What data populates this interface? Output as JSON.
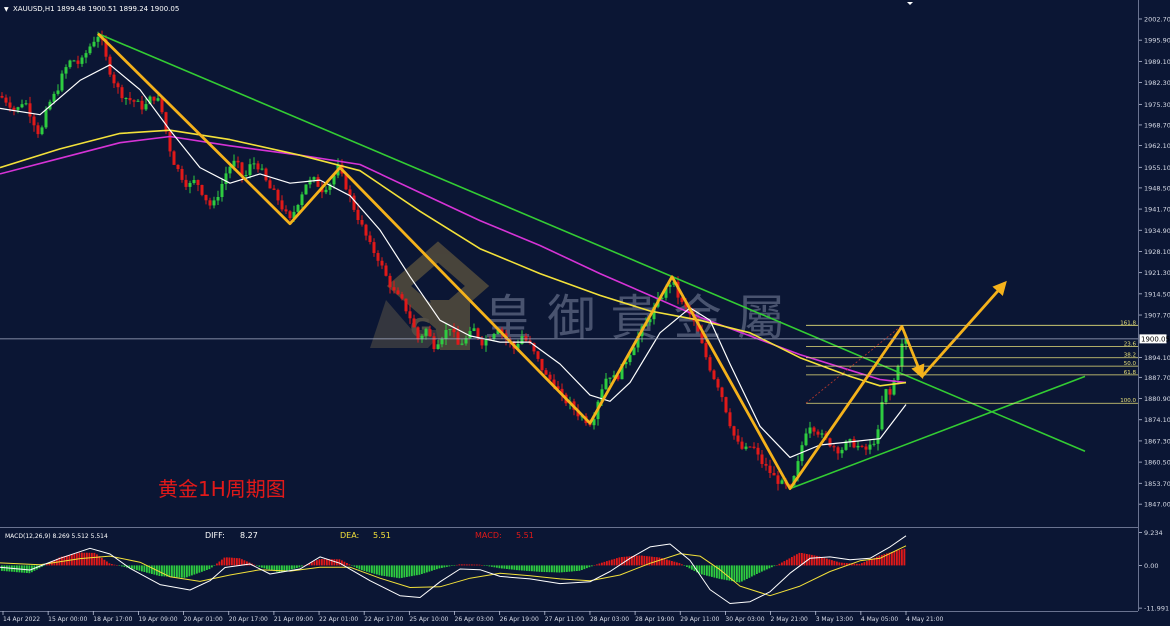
{
  "header": {
    "arrow": "▼",
    "title": "XAUUSD,H1  1899.48 1900.51 1899.24 1900.05"
  },
  "watermark": {
    "text": "皇 御 貴 金 屬",
    "logo_letter": "G"
  },
  "annotation": {
    "text": "黄金1H周期图",
    "color": "#e11919"
  },
  "colors": {
    "background": "#0b1634",
    "bull_candle": "#2ecc40",
    "bear_candle": "#e11919",
    "ma_fast": "#ffffff",
    "ma_mid": "#f3e13a",
    "ma_slow": "#d633d6",
    "trendline": "#33cc33",
    "wave": "#f5b21b",
    "fib": "#e8e07a"
  },
  "chart_data": [
    {
      "type": "candlestick",
      "symbol": "XAUUSD",
      "timeframe": "H1",
      "ohlc_last": {
        "open": 1899.48,
        "high": 1900.51,
        "low": 1899.24,
        "close": 1900.05
      },
      "current_price": 1900.05,
      "current_price_label": "1900.05",
      "ylim": [
        1847.7,
        2004.3
      ],
      "y_ticks": [
        2002.7,
        1995.9,
        1989.1,
        1982.3,
        1975.3,
        1968.7,
        1962.1,
        1955.1,
        1948.5,
        1941.7,
        1934.9,
        1928.1,
        1921.3,
        1914.5,
        1907.7,
        1894.1,
        1887.7,
        1880.9,
        1874.1,
        1867.3,
        1860.5,
        1853.7,
        1847.0
      ],
      "x_ticks": [
        "14 Apr 2022",
        "15 Apr 00:00",
        "18 Apr 17:00",
        "19 Apr 09:00",
        "20 Apr 01:00",
        "20 Apr 17:00",
        "21 Apr 09:00",
        "22 Apr 01:00",
        "22 Apr 17:00",
        "25 Apr 10:00",
        "26 Apr 03:00",
        "26 Apr 19:00",
        "27 Apr 11:00",
        "28 Apr 03:00",
        "28 Apr 19:00",
        "29 Apr 11:00",
        "30 Apr 03:00",
        "2 May 21:00",
        "3 May 13:00",
        "4 May 05:00",
        "4 May 21:00"
      ],
      "price_path": [
        [
          0,
          1978
        ],
        [
          8,
          1976
        ],
        [
          16,
          1973
        ],
        [
          24,
          1977
        ],
        [
          32,
          1971
        ],
        [
          40,
          1965
        ],
        [
          48,
          1975
        ],
        [
          56,
          1979
        ],
        [
          64,
          1986
        ],
        [
          72,
          1990
        ],
        [
          80,
          1988
        ],
        [
          88,
          1993
        ],
        [
          96,
          1997
        ],
        [
          100,
          1998
        ],
        [
          104,
          1992
        ],
        [
          112,
          1984
        ],
        [
          120,
          1979
        ],
        [
          128,
          1977
        ],
        [
          136,
          1976
        ],
        [
          144,
          1974
        ],
        [
          152,
          1978
        ],
        [
          160,
          1976
        ],
        [
          165,
          1968
        ],
        [
          172,
          1958
        ],
        [
          180,
          1953
        ],
        [
          188,
          1949
        ],
        [
          196,
          1951
        ],
        [
          204,
          1946
        ],
        [
          212,
          1942
        ],
        [
          220,
          1948
        ],
        [
          228,
          1955
        ],
        [
          236,
          1957
        ],
        [
          244,
          1951
        ],
        [
          252,
          1957
        ],
        [
          260,
          1955
        ],
        [
          268,
          1949
        ],
        [
          276,
          1946
        ],
        [
          284,
          1941
        ],
        [
          290,
          1938
        ],
        [
          298,
          1944
        ],
        [
          306,
          1950
        ],
        [
          314,
          1951
        ],
        [
          322,
          1948
        ],
        [
          330,
          1950
        ],
        [
          338,
          1955
        ],
        [
          346,
          1949
        ],
        [
          354,
          1942
        ],
        [
          362,
          1936
        ],
        [
          370,
          1930
        ],
        [
          378,
          1926
        ],
        [
          386,
          1920
        ],
        [
          394,
          1915
        ],
        [
          402,
          1912
        ],
        [
          410,
          1907
        ],
        [
          418,
          1900
        ],
        [
          426,
          1903
        ],
        [
          434,
          1898
        ],
        [
          442,
          1901
        ],
        [
          450,
          1904
        ],
        [
          458,
          1898
        ],
        [
          466,
          1900
        ],
        [
          474,
          1903
        ],
        [
          482,
          1899
        ],
        [
          490,
          1901
        ],
        [
          498,
          1904
        ],
        [
          506,
          1900
        ],
        [
          514,
          1897
        ],
        [
          522,
          1901
        ],
        [
          530,
          1898
        ],
        [
          538,
          1893
        ],
        [
          546,
          1888
        ],
        [
          554,
          1886
        ],
        [
          562,
          1881
        ],
        [
          570,
          1879
        ],
        [
          578,
          1876
        ],
        [
          586,
          1874
        ],
        [
          592,
          1873
        ],
        [
          600,
          1883
        ],
        [
          608,
          1889
        ],
        [
          616,
          1887
        ],
        [
          624,
          1892
        ],
        [
          632,
          1897
        ],
        [
          640,
          1902
        ],
        [
          648,
          1906
        ],
        [
          656,
          1911
        ],
        [
          664,
          1915
        ],
        [
          672,
          1919
        ],
        [
          680,
          1912
        ],
        [
          688,
          1909
        ],
        [
          696,
          1904
        ],
        [
          704,
          1896
        ],
        [
          712,
          1889
        ],
        [
          720,
          1884
        ],
        [
          728,
          1875
        ],
        [
          736,
          1867
        ],
        [
          744,
          1864
        ],
        [
          752,
          1866
        ],
        [
          760,
          1861
        ],
        [
          768,
          1858
        ],
        [
          776,
          1855
        ],
        [
          784,
          1853
        ],
        [
          790,
          1852
        ],
        [
          796,
          1857
        ],
        [
          802,
          1866
        ],
        [
          808,
          1873
        ],
        [
          816,
          1871
        ],
        [
          824,
          1868
        ],
        [
          832,
          1866
        ],
        [
          840,
          1864
        ],
        [
          848,
          1867
        ],
        [
          856,
          1866
        ],
        [
          864,
          1864
        ],
        [
          872,
          1866
        ],
        [
          878,
          1870
        ],
        [
          884,
          1884
        ],
        [
          890,
          1882
        ],
        [
          896,
          1889
        ],
        [
          902,
          1898
        ],
        [
          906,
          1900
        ]
      ],
      "ma_fast_path": [
        [
          0,
          1974
        ],
        [
          40,
          1972
        ],
        [
          80,
          1983
        ],
        [
          110,
          1988
        ],
        [
          140,
          1980
        ],
        [
          170,
          1967
        ],
        [
          200,
          1955
        ],
        [
          230,
          1950
        ],
        [
          260,
          1953
        ],
        [
          290,
          1950
        ],
        [
          320,
          1951
        ],
        [
          350,
          1946
        ],
        [
          380,
          1935
        ],
        [
          410,
          1920
        ],
        [
          440,
          1906
        ],
        [
          470,
          1901
        ],
        [
          500,
          1899
        ],
        [
          530,
          1899
        ],
        [
          560,
          1892
        ],
        [
          590,
          1882
        ],
        [
          610,
          1880
        ],
        [
          630,
          1886
        ],
        [
          660,
          1902
        ],
        [
          690,
          1910
        ],
        [
          710,
          1906
        ],
        [
          730,
          1892
        ],
        [
          760,
          1872
        ],
        [
          790,
          1862
        ],
        [
          820,
          1866
        ],
        [
          850,
          1867
        ],
        [
          880,
          1868
        ],
        [
          906,
          1879
        ]
      ],
      "ma_mid_path": [
        [
          0,
          1955
        ],
        [
          60,
          1961
        ],
        [
          120,
          1966
        ],
        [
          170,
          1967
        ],
        [
          230,
          1964
        ],
        [
          300,
          1959
        ],
        [
          360,
          1954
        ],
        [
          420,
          1941
        ],
        [
          480,
          1929
        ],
        [
          540,
          1921
        ],
        [
          600,
          1914
        ],
        [
          650,
          1909
        ],
        [
          700,
          1906
        ],
        [
          750,
          1902
        ],
        [
          800,
          1894
        ],
        [
          850,
          1888
        ],
        [
          880,
          1885
        ],
        [
          906,
          1886
        ]
      ],
      "ma_slow_path": [
        [
          0,
          1953
        ],
        [
          60,
          1958
        ],
        [
          120,
          1963
        ],
        [
          170,
          1965
        ],
        [
          230,
          1962
        ],
        [
          300,
          1959
        ],
        [
          360,
          1956
        ],
        [
          420,
          1947
        ],
        [
          480,
          1938
        ],
        [
          540,
          1930
        ],
        [
          600,
          1921
        ],
        [
          650,
          1914
        ],
        [
          700,
          1907
        ],
        [
          750,
          1901
        ],
        [
          800,
          1895
        ],
        [
          850,
          1890
        ],
        [
          880,
          1887
        ],
        [
          906,
          1886
        ]
      ],
      "trendlines": [
        {
          "name": "",
          "points": [
            [
              98,
              1998
            ],
            [
              1085,
              1864
            ]
          ]
        },
        {
          "name": "",
          "points": [
            [
              790,
              1852
            ],
            [
              1085,
              1888
            ]
          ]
        }
      ],
      "wave_path": [
        [
          98,
          1998
        ],
        [
          290,
          1937
        ],
        [
          340,
          1955
        ],
        [
          590,
          1873
        ],
        [
          672,
          1920
        ],
        [
          790,
          1852
        ],
        [
          902,
          1904
        ],
        [
          922,
          1888
        ]
      ],
      "wave_forecast": {
        "from": [
          922,
          1888
        ],
        "to": [
          1005,
          1918
        ]
      },
      "fib_levels": [
        {
          "label": "161.8",
          "price": 1904.4
        },
        {
          "label": "23.6",
          "price": 1897.6
        },
        {
          "label": "38.2",
          "price": 1894.0
        },
        {
          "label": "50.0",
          "price": 1891.3
        },
        {
          "label": "61.8",
          "price": 1888.5
        },
        {
          "label": "100.0",
          "price": 1879.4
        }
      ]
    },
    {
      "type": "macd",
      "title": "MACD(12,26,9) 8.269 5.512 5.514",
      "diff_label": "DIFF:",
      "diff_value": "8.27",
      "dea_label": "DEA:",
      "dea_value": "5.51",
      "macd_label": "MACD:",
      "macd_value": "5.51",
      "ylim": [
        -12.8,
        10.5
      ],
      "y_ticks": [
        9.234,
        0.0,
        -11.991
      ],
      "y_tick_labels": [
        "9.234",
        "0.00",
        "-11.991"
      ],
      "histogram_path": [
        [
          0,
          -1.5
        ],
        [
          30,
          -2.2
        ],
        [
          60,
          2.3
        ],
        [
          80,
          3.6
        ],
        [
          95,
          3.5
        ],
        [
          110,
          0.5
        ],
        [
          130,
          -0.8
        ],
        [
          160,
          -3.0
        ],
        [
          185,
          -3.5
        ],
        [
          210,
          -1.0
        ],
        [
          225,
          2.3
        ],
        [
          240,
          2.0
        ],
        [
          260,
          -0.5
        ],
        [
          280,
          -2.0
        ],
        [
          300,
          -0.5
        ],
        [
          320,
          1.8
        ],
        [
          340,
          1.7
        ],
        [
          360,
          -1.2
        ],
        [
          380,
          -2.8
        ],
        [
          400,
          -3.6
        ],
        [
          420,
          -2.6
        ],
        [
          440,
          -0.8
        ],
        [
          460,
          0.3
        ],
        [
          480,
          0.2
        ],
        [
          500,
          -0.8
        ],
        [
          520,
          -1.4
        ],
        [
          540,
          -1.8
        ],
        [
          560,
          -2.0
        ],
        [
          580,
          -1.5
        ],
        [
          600,
          0.6
        ],
        [
          620,
          2.3
        ],
        [
          640,
          2.8
        ],
        [
          660,
          2.2
        ],
        [
          680,
          0.6
        ],
        [
          700,
          -2.4
        ],
        [
          720,
          -3.8
        ],
        [
          740,
          -4.8
        ],
        [
          760,
          -2.0
        ],
        [
          780,
          0.5
        ],
        [
          800,
          3.6
        ],
        [
          820,
          2.5
        ],
        [
          840,
          0.8
        ],
        [
          860,
          0.4
        ],
        [
          880,
          2.8
        ],
        [
          900,
          4.4
        ],
        [
          906,
          4.8
        ]
      ],
      "diff_path": [
        [
          0,
          -0.5
        ],
        [
          30,
          -1.3
        ],
        [
          60,
          2.0
        ],
        [
          90,
          4.8
        ],
        [
          110,
          3.2
        ],
        [
          130,
          -0.8
        ],
        [
          160,
          -5.4
        ],
        [
          190,
          -6.9
        ],
        [
          210,
          -4.3
        ],
        [
          225,
          -0.6
        ],
        [
          250,
          0.4
        ],
        [
          270,
          -2.4
        ],
        [
          300,
          -1.0
        ],
        [
          320,
          2.4
        ],
        [
          340,
          0.6
        ],
        [
          370,
          -4.3
        ],
        [
          400,
          -8.5
        ],
        [
          420,
          -9.0
        ],
        [
          440,
          -4.6
        ],
        [
          460,
          -1.0
        ],
        [
          480,
          -1.2
        ],
        [
          500,
          -3.1
        ],
        [
          530,
          -3.8
        ],
        [
          560,
          -5.1
        ],
        [
          590,
          -4.6
        ],
        [
          610,
          -1.7
        ],
        [
          630,
          2.0
        ],
        [
          650,
          5.2
        ],
        [
          670,
          6.0
        ],
        [
          690,
          1.4
        ],
        [
          710,
          -6.8
        ],
        [
          730,
          -10.7
        ],
        [
          750,
          -10.2
        ],
        [
          770,
          -7.4
        ],
        [
          790,
          -2.2
        ],
        [
          810,
          2.0
        ],
        [
          830,
          2.4
        ],
        [
          850,
          1.6
        ],
        [
          870,
          2.0
        ],
        [
          890,
          5.2
        ],
        [
          906,
          8.3
        ]
      ],
      "dea_path": [
        [
          0,
          0.7
        ],
        [
          40,
          0.2
        ],
        [
          80,
          1.9
        ],
        [
          110,
          2.6
        ],
        [
          140,
          0.9
        ],
        [
          170,
          -3.2
        ],
        [
          200,
          -4.5
        ],
        [
          230,
          -2.7
        ],
        [
          260,
          -1.2
        ],
        [
          290,
          -1.6
        ],
        [
          320,
          -0.5
        ],
        [
          350,
          -0.5
        ],
        [
          380,
          -3.6
        ],
        [
          410,
          -6.2
        ],
        [
          440,
          -6.0
        ],
        [
          470,
          -3.6
        ],
        [
          500,
          -2.2
        ],
        [
          530,
          -2.9
        ],
        [
          560,
          -3.8
        ],
        [
          590,
          -4.3
        ],
        [
          620,
          -2.7
        ],
        [
          650,
          0.6
        ],
        [
          680,
          3.3
        ],
        [
          700,
          2.6
        ],
        [
          720,
          -1.2
        ],
        [
          740,
          -5.8
        ],
        [
          770,
          -8.5
        ],
        [
          800,
          -5.8
        ],
        [
          830,
          -1.7
        ],
        [
          860,
          1.3
        ],
        [
          880,
          2.0
        ],
        [
          906,
          5.5
        ]
      ]
    }
  ]
}
